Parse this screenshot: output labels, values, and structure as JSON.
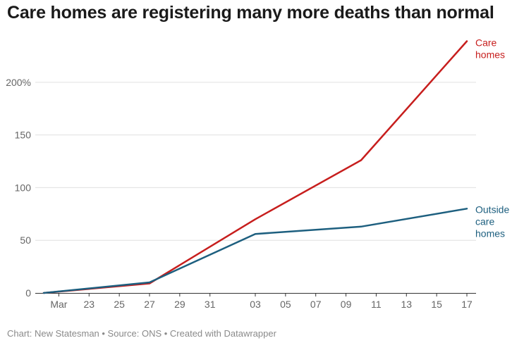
{
  "colors": {
    "care_homes": "#c71e1d",
    "outside": "#1d5f7f",
    "grid": "#e0e0e0",
    "axis": "#333333"
  },
  "footer": {
    "text": "Chart: New Statesman • Source: ONS • Created with Datawrapper"
  },
  "chart_data": {
    "type": "line",
    "title": "Care homes are registering many more deaths than normal",
    "xlabel": "",
    "ylabel": "",
    "x_domain": [
      0,
      28
    ],
    "ylim": [
      0,
      240
    ],
    "y_ticks": [
      {
        "value": 0,
        "label": "0"
      },
      {
        "value": 50,
        "label": "50"
      },
      {
        "value": 100,
        "label": "100"
      },
      {
        "value": 150,
        "label": "150"
      },
      {
        "value": 200,
        "label": "200%"
      }
    ],
    "x_ticks": [
      {
        "day": 1,
        "label": "Mar"
      },
      {
        "day": 3,
        "label": "23"
      },
      {
        "day": 5,
        "label": "25"
      },
      {
        "day": 7,
        "label": "27"
      },
      {
        "day": 9,
        "label": "29"
      },
      {
        "day": 11,
        "label": "31"
      },
      {
        "day": 14,
        "label": "03"
      },
      {
        "day": 16,
        "label": "05"
      },
      {
        "day": 18,
        "label": "07"
      },
      {
        "day": 20,
        "label": "09"
      },
      {
        "day": 22,
        "label": "11"
      },
      {
        "day": 24,
        "label": "13"
      },
      {
        "day": 26,
        "label": "15"
      },
      {
        "day": 28,
        "label": "17"
      }
    ],
    "series": [
      {
        "name": "Care homes",
        "label_lines": [
          "Care",
          "homes"
        ],
        "color": "#c71e1d",
        "points": [
          [
            0,
            0
          ],
          [
            7,
            9
          ],
          [
            14,
            70
          ],
          [
            21,
            126
          ],
          [
            28,
            239
          ]
        ]
      },
      {
        "name": "Outside care homes",
        "label_lines": [
          "Outside",
          "care",
          "homes"
        ],
        "color": "#1d5f7f",
        "points": [
          [
            0,
            0
          ],
          [
            7,
            10
          ],
          [
            14,
            56
          ],
          [
            21,
            63
          ],
          [
            28,
            80
          ]
        ]
      }
    ]
  }
}
